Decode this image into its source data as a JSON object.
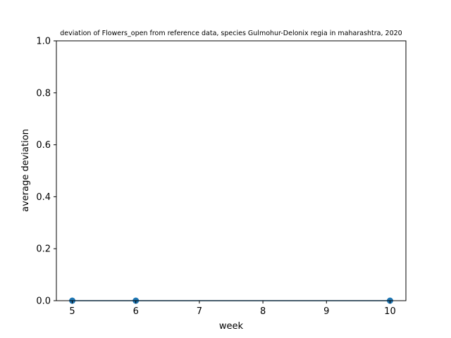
{
  "chart_data": {
    "type": "line",
    "title": "deviation of Flowers_open from reference data, species Gulmohur-Delonix regia in maharashtra, 2020",
    "xlabel": "week",
    "ylabel": "average deviation",
    "xlim": [
      4.75,
      10.25
    ],
    "ylim": [
      0,
      1
    ],
    "xticks": [
      "5",
      "6",
      "7",
      "8",
      "9",
      "10"
    ],
    "yticks": [
      "0.0",
      "0.2",
      "0.4",
      "0.6",
      "0.8",
      "1.0"
    ],
    "grid": false,
    "series": [
      {
        "x": [
          5,
          6,
          10
        ],
        "y": [
          0,
          0,
          0
        ],
        "color": "#1f77b4",
        "marker": "circle"
      }
    ]
  }
}
